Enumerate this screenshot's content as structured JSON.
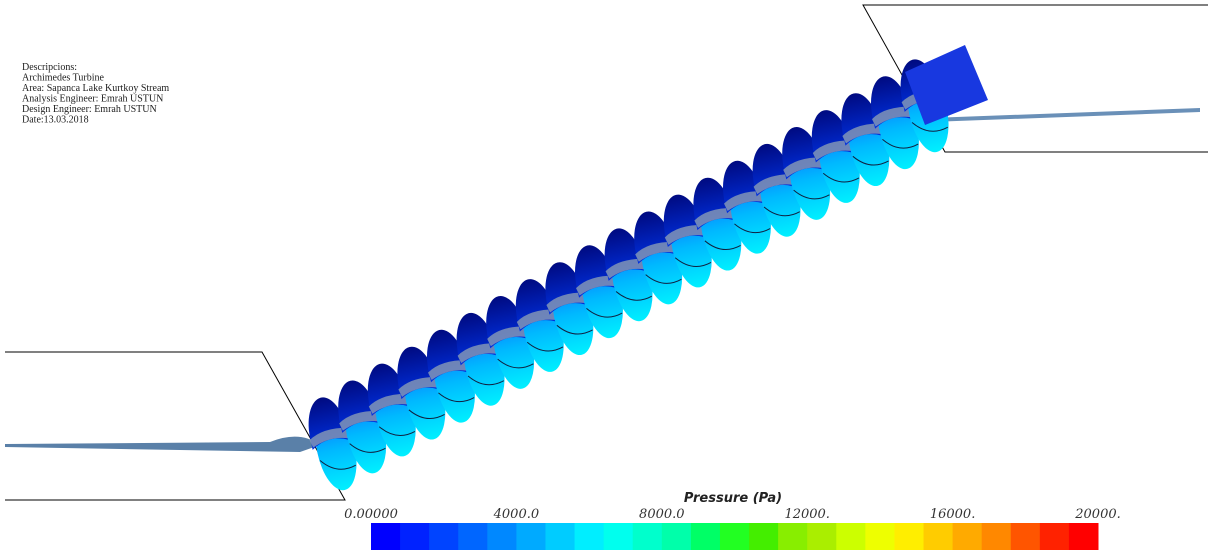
{
  "description": [
    "Descripcions:",
    "Archimedes Turbine",
    "Area: Sapanca Lake Kurtkoy Stream",
    "Analysis Engineer: Emrah USTUN",
    "Design Engineer:  Emrah USTUN",
    "Date:13.03.2018"
  ],
  "colorbar": {
    "title": "Pressure (Pa)",
    "lim": [
      0,
      20000
    ],
    "ticks": [
      {
        "value": 0,
        "label": "0.00000"
      },
      {
        "value": 4000,
        "label": "4000.0"
      },
      {
        "value": 8000,
        "label": "8000.0"
      },
      {
        "value": 12000,
        "label": "12000."
      },
      {
        "value": 16000,
        "label": "16000."
      },
      {
        "value": 20000,
        "label": "20000."
      }
    ],
    "colors": [
      "#0000ff",
      "#0022ff",
      "#0044ff",
      "#0066ff",
      "#0088ff",
      "#00aaff",
      "#00ccff",
      "#00eeff",
      "#00ffee",
      "#00ffcc",
      "#00ffaa",
      "#00ff66",
      "#22ff22",
      "#44ee00",
      "#88ee00",
      "#aaee00",
      "#ccff00",
      "#eeff00",
      "#ffee00",
      "#ffcc00",
      "#ffaa00",
      "#ff8800",
      "#ff5500",
      "#ff2200",
      "#ff0000"
    ]
  }
}
